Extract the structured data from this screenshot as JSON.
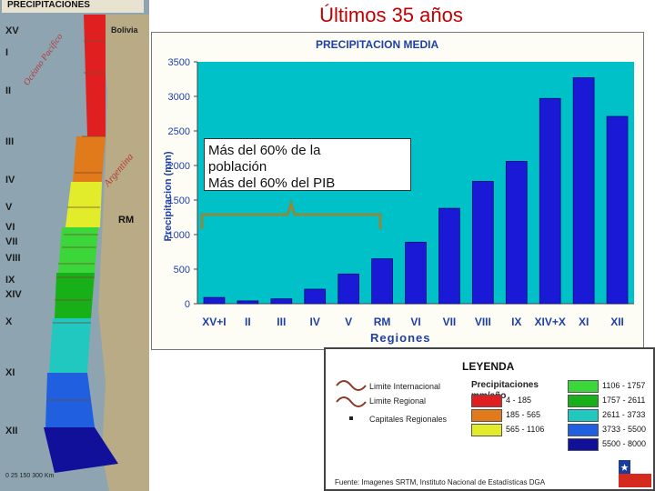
{
  "page_title": "Últimos 35 años",
  "map": {
    "header": "PRECIPITACIONES",
    "country_bolivia": "Bolivia",
    "ocean": "Océano Pacífico",
    "argentina": "Argentina",
    "rm": "RM",
    "scale": "0 25 150   300 Km",
    "regions": [
      "XV",
      "I",
      "II",
      "III",
      "IV",
      "V",
      "VI",
      "VII",
      "VIII",
      "IX",
      "XIV",
      "X",
      "XI",
      "XII"
    ]
  },
  "chart_data": {
    "type": "bar",
    "title": "PRECIPITACION MEDIA",
    "xlabel": "Regiones",
    "ylabel": "Precipitacion (mm)",
    "ylim": [
      0,
      3500
    ],
    "yticks": [
      0,
      500,
      1000,
      1500,
      2000,
      2500,
      3000,
      3500
    ],
    "categories": [
      "XV+I",
      "II",
      "III",
      "IV",
      "V",
      "RM",
      "VI",
      "VII",
      "VIII",
      "IX",
      "XIV+X",
      "XI",
      "XII"
    ],
    "values": [
      90,
      40,
      70,
      210,
      430,
      650,
      890,
      1380,
      1770,
      2060,
      2970,
      3270,
      2710
    ],
    "bar_color": "#1a1ad6",
    "plot_background": "#00c0c8",
    "grid": false
  },
  "callout": {
    "line1": "Más del 60% de la",
    "line2": "población",
    "line3": "Más del 60% del PIB"
  },
  "legend": {
    "title": "LEYENDA",
    "limite_internacional": "Limite Internacional",
    "limite_regional": "Limite Regional",
    "capitales": "Capitales Regionales",
    "precip_title_1": "Precipitaciones",
    "precip_title_2": "mm/año",
    "ranges": [
      {
        "label": "4 - 185",
        "color": "#e02020"
      },
      {
        "label": "185 - 565",
        "color": "#e07a1a"
      },
      {
        "label": "565 - 1106",
        "color": "#e3ec2a"
      },
      {
        "label": "1106 - 1757",
        "color": "#3ad63a"
      },
      {
        "label": "1757 - 2611",
        "color": "#18b018"
      },
      {
        "label": "2611 - 3733",
        "color": "#20c8c0"
      },
      {
        "label": "3733 - 5500",
        "color": "#1f5fe0"
      },
      {
        "label": "5500 - 8000",
        "color": "#10109a"
      }
    ],
    "source": "Fuente: Imagenes SRTM, Instituto Nacional de Estadísticas  DGA"
  }
}
